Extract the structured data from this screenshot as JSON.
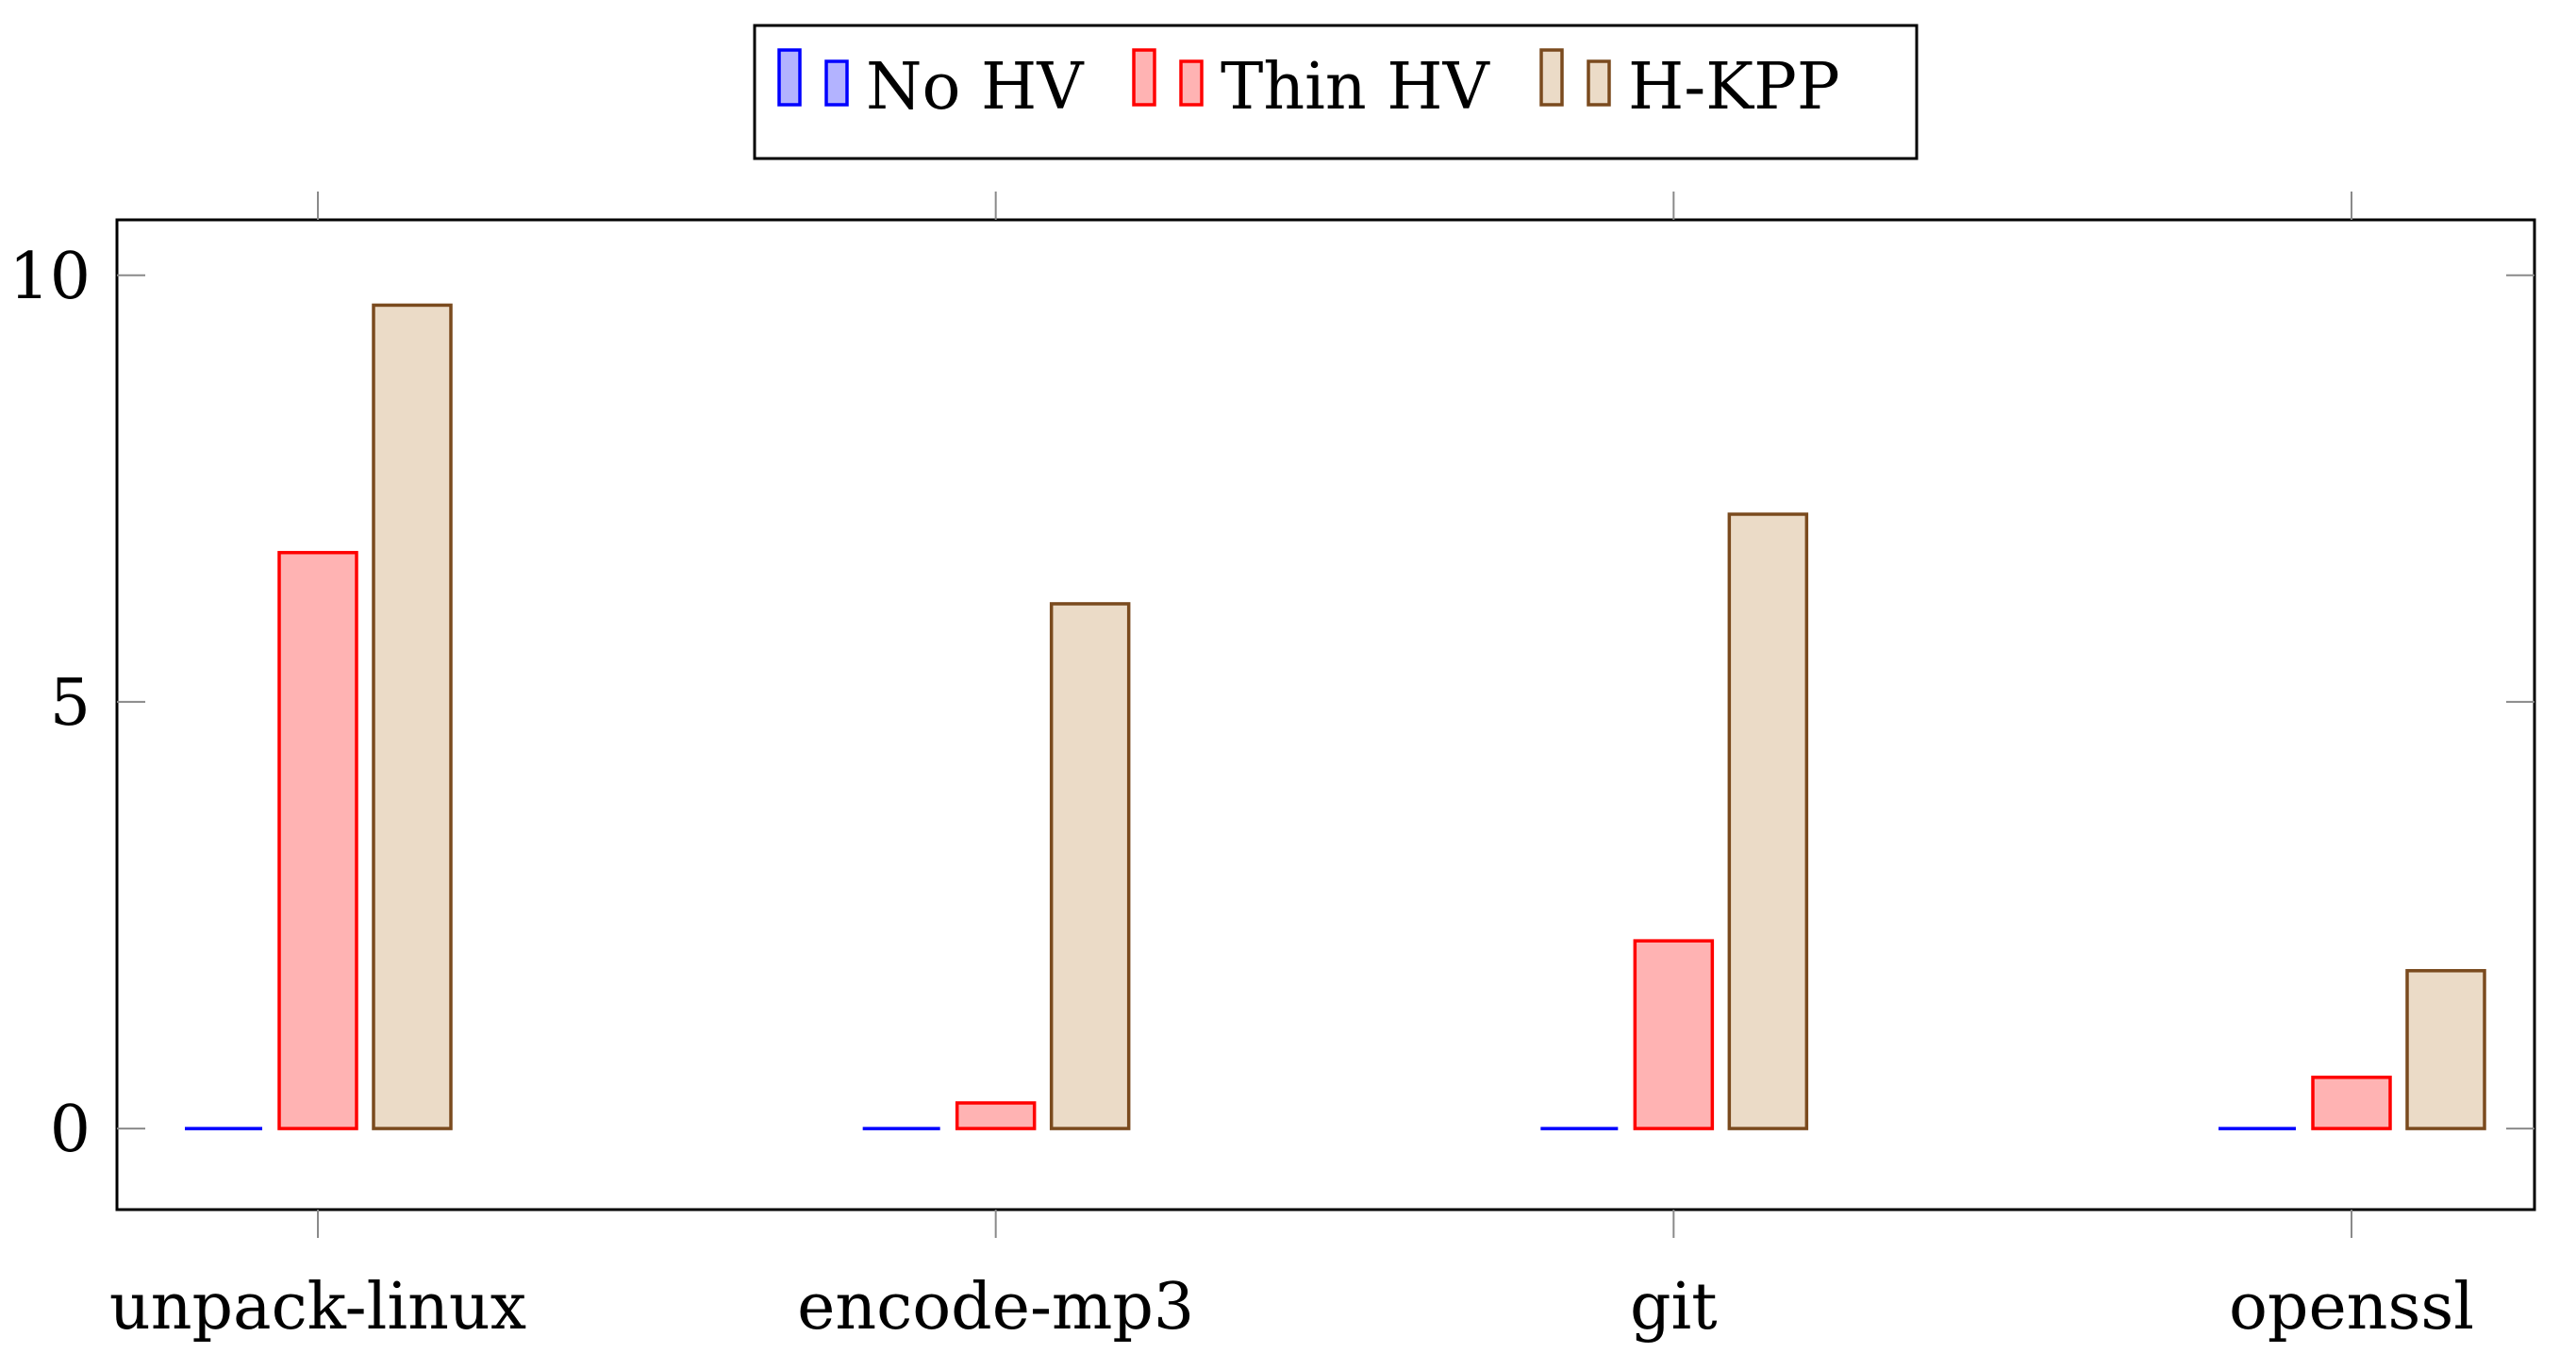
{
  "chart_data": {
    "type": "bar",
    "title": "",
    "xlabel": "",
    "ylabel": "",
    "categories": [
      "unpack-linux",
      "encode-mp3",
      "git",
      "openssl"
    ],
    "series": [
      {
        "name": "No HV",
        "values": [
          0,
          0,
          0,
          0
        ],
        "stroke": "#0000ff",
        "fill": "#b3b3ff"
      },
      {
        "name": "Thin HV",
        "values": [
          6.75,
          0.3,
          2.2,
          0.6
        ],
        "stroke": "#ff0000",
        "fill": "#ffb3b3"
      },
      {
        "name": "H-KPP",
        "values": [
          9.65,
          6.15,
          7.2,
          1.85
        ],
        "stroke": "#7a4a1e",
        "fill": "#ebdbc7"
      }
    ],
    "yticks": [
      0,
      5,
      10
    ],
    "ylim": [
      -0.95,
      10.65
    ],
    "grid": false,
    "legend": {
      "placement": "top-center",
      "entries": [
        "No HV",
        "Thin HV",
        "H-KPP"
      ]
    }
  }
}
